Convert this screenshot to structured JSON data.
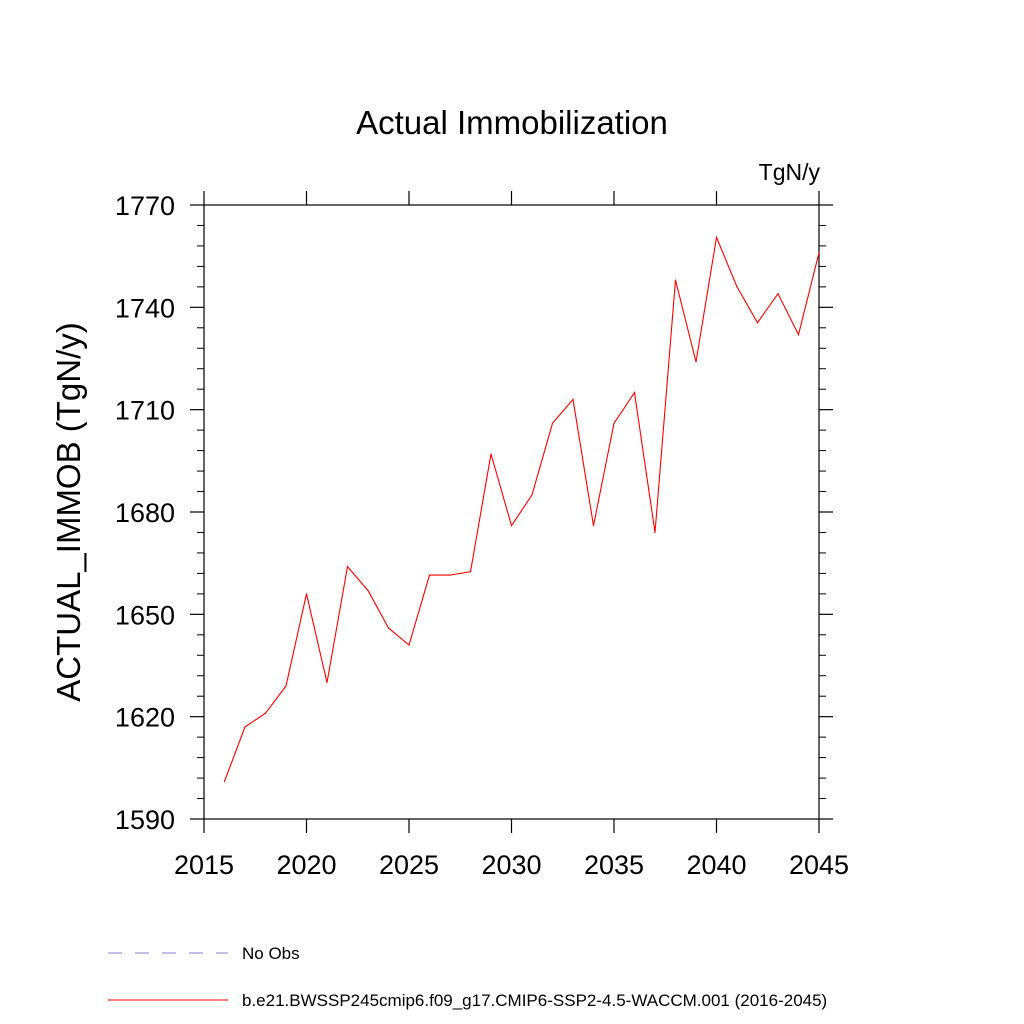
{
  "chart_data": {
    "type": "line",
    "title": "Actual Immobilization",
    "units_label": "TgN/y",
    "ylabel": "ACTUAL_IMMOB  (TgN/y)",
    "xlabel": "",
    "xlim": [
      2015,
      2045
    ],
    "ylim": [
      1590,
      1770
    ],
    "x_ticks": [
      2015,
      2020,
      2025,
      2030,
      2035,
      2040,
      2045
    ],
    "y_ticks": [
      1590,
      1620,
      1650,
      1680,
      1710,
      1740,
      1770
    ],
    "grid": false,
    "series": [
      {
        "name": "b.e21.BWSSP245cmip6.f09_g17.CMIP6-SSP2-4.5-WACCM.001 (2016-2045)",
        "color": "#ff0000",
        "x": [
          2016,
          2017,
          2018,
          2019,
          2020,
          2021,
          2022,
          2023,
          2024,
          2025,
          2026,
          2027,
          2028,
          2029,
          2030,
          2031,
          2032,
          2033,
          2034,
          2035,
          2036,
          2037,
          2038,
          2039,
          2040,
          2041,
          2042,
          2043,
          2044,
          2045
        ],
        "y": [
          1601,
          1617,
          1621,
          1629,
          1656,
          1630,
          1664,
          1657,
          1646,
          1641,
          1661.5,
          1661.5,
          1662.5,
          1697,
          1676,
          1685,
          1706,
          1713,
          1676,
          1706,
          1715,
          1674,
          1748,
          1724,
          1760.5,
          1746,
          1735.5,
          1744,
          1732,
          1756
        ]
      }
    ],
    "legend": {
      "placement": "bottom-left",
      "items": [
        {
          "label": "No Obs",
          "color": "#8a7fd0",
          "style": "dashed"
        },
        {
          "label": "b.e21.BWSSP245cmip6.f09_g17.CMIP6-SSP2-4.5-WACCM.001 (2016-2045)",
          "color": "#ff0000",
          "style": "solid"
        }
      ]
    }
  }
}
